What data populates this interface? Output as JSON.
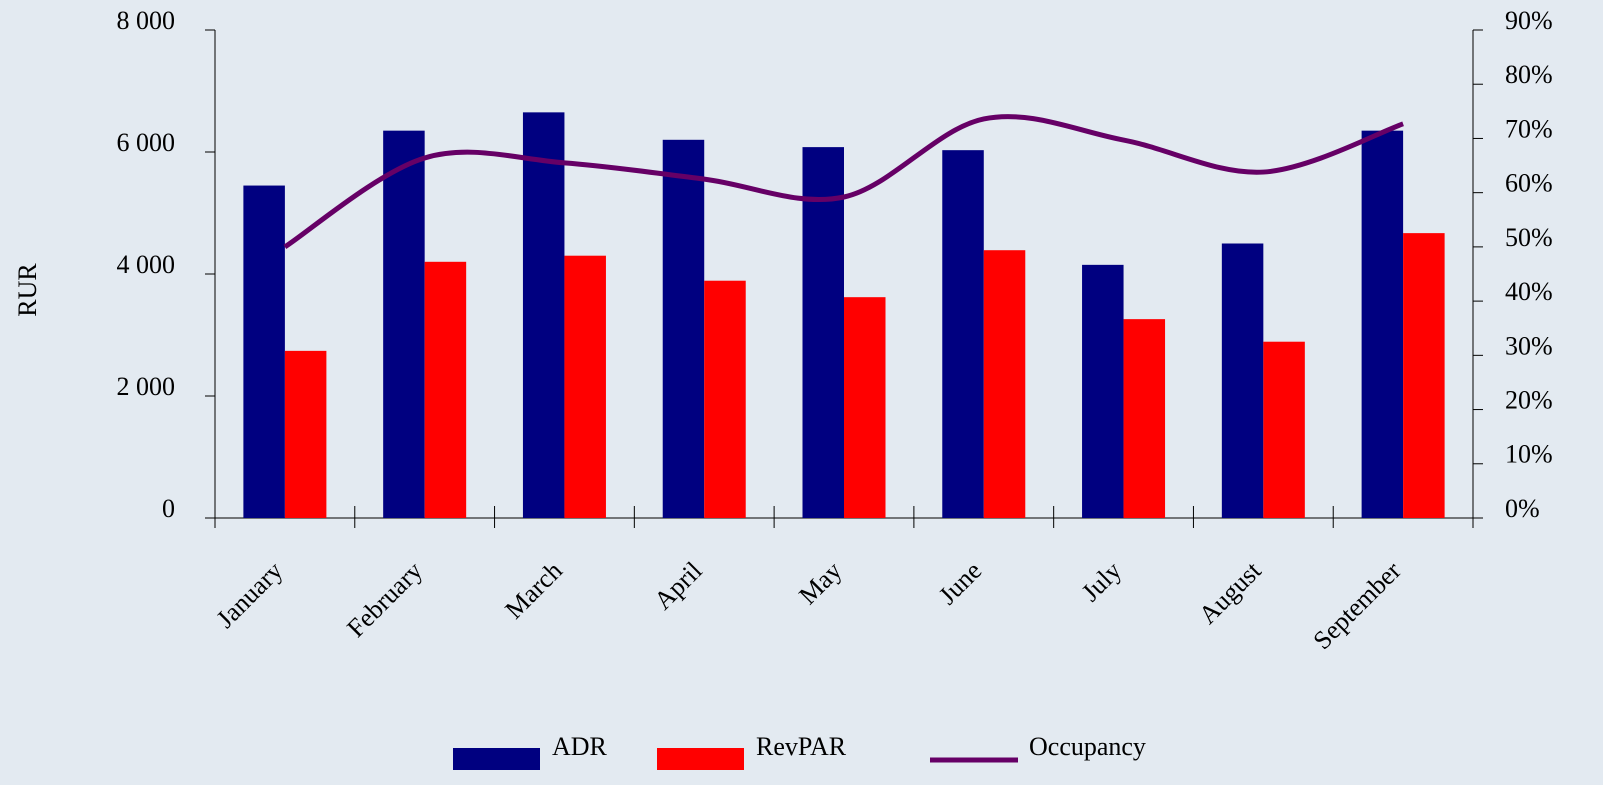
{
  "chart_data": {
    "type": "bar_line",
    "y_label": "RUR",
    "categories": [
      "January",
      "February",
      "March",
      "April",
      "May",
      "June",
      "July",
      "August",
      "September"
    ],
    "series": [
      {
        "name": "ADR",
        "color": "#000080",
        "type": "bar",
        "values": [
          5450,
          6350,
          6650,
          6200,
          6080,
          6030,
          4150,
          4500,
          6350
        ]
      },
      {
        "name": "RevPAR",
        "color": "#ff0000",
        "type": "bar",
        "values": [
          2740,
          4200,
          4300,
          3890,
          3620,
          4390,
          3260,
          2890,
          4670
        ]
      },
      {
        "name": "Occupancy",
        "color": "#660066",
        "type": "line",
        "axis": "y2",
        "values": [
          50,
          66.4,
          65.5,
          62.5,
          59.2,
          73.6,
          69.7,
          63.8,
          72.7
        ]
      }
    ],
    "ylim": [
      0,
      8000
    ],
    "yticks": [
      0,
      {
        "value": 2000,
        "label": "2 000"
      },
      {
        "value": 4000,
        "label": "4 000"
      },
      {
        "value": 6000,
        "label": "6 000"
      },
      {
        "value": 8000,
        "label": "8 000"
      }
    ],
    "y2lim": [
      0,
      90
    ],
    "y2ticks": [
      {
        "value": 0,
        "label": "0%"
      },
      {
        "value": 10,
        "label": "10%"
      },
      {
        "value": 20,
        "label": "20%"
      },
      {
        "value": 30,
        "label": "30%"
      },
      {
        "value": 40,
        "label": "40%"
      },
      {
        "value": 50,
        "label": "50%"
      },
      {
        "value": 60,
        "label": "60%"
      },
      {
        "value": 70,
        "label": "70%"
      },
      {
        "value": 80,
        "label": "80%"
      },
      {
        "value": 90,
        "label": "90%"
      }
    ],
    "legend": "bottom"
  }
}
